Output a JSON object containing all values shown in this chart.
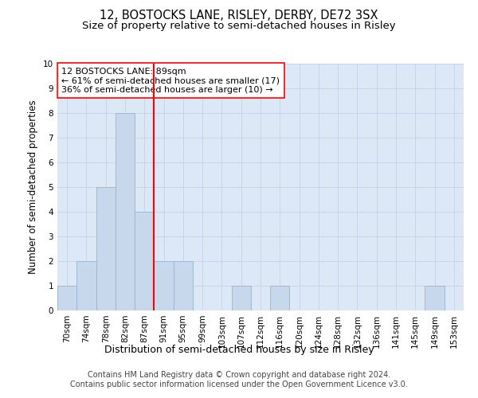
{
  "title": "12, BOSTOCKS LANE, RISLEY, DERBY, DE72 3SX",
  "subtitle": "Size of property relative to semi-detached houses in Risley",
  "xlabel": "Distribution of semi-detached houses by size in Risley",
  "ylabel": "Number of semi-detached properties",
  "categories": [
    "70sqm",
    "74sqm",
    "78sqm",
    "82sqm",
    "87sqm",
    "91sqm",
    "95sqm",
    "99sqm",
    "103sqm",
    "107sqm",
    "112sqm",
    "116sqm",
    "120sqm",
    "124sqm",
    "128sqm",
    "132sqm",
    "136sqm",
    "141sqm",
    "145sqm",
    "149sqm",
    "153sqm"
  ],
  "values": [
    1,
    2,
    5,
    8,
    4,
    2,
    2,
    0,
    0,
    1,
    0,
    1,
    0,
    0,
    0,
    0,
    0,
    0,
    0,
    1,
    0
  ],
  "bar_color": "#c8d8ec",
  "bar_edge_color": "#9ab4d0",
  "vline_index": 5,
  "annotation_title": "12 BOSTOCKS LANE: 89sqm",
  "annotation_line1": "← 61% of semi-detached houses are smaller (17)",
  "annotation_line2": "36% of semi-detached houses are larger (10) →",
  "annotation_box_color": "white",
  "annotation_box_edge_color": "red",
  "vline_color": "red",
  "ylim": [
    0,
    10
  ],
  "yticks": [
    0,
    1,
    2,
    3,
    4,
    5,
    6,
    7,
    8,
    9,
    10
  ],
  "grid_color": "#c8d4e8",
  "background_color": "#dce8f5",
  "footer": "Contains HM Land Registry data © Crown copyright and database right 2024.\nContains public sector information licensed under the Open Government Licence v3.0.",
  "title_fontsize": 10.5,
  "subtitle_fontsize": 9.5,
  "xlabel_fontsize": 9,
  "ylabel_fontsize": 8.5,
  "tick_fontsize": 7.5,
  "annotation_fontsize": 8,
  "footer_fontsize": 7
}
